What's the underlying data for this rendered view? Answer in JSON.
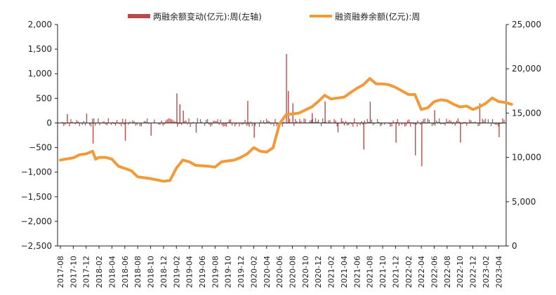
{
  "chart_data": {
    "type": "bar+line",
    "legend": {
      "placement": "top",
      "bar_label": "两融余额变动(亿元):周(左轴)",
      "line_label": "融资融券余额(亿元):周"
    },
    "colors": {
      "bar": "#b84a4a",
      "line": "#f29a3a"
    },
    "left_axis": {
      "ylim": [
        -2500,
        2000
      ],
      "ticks": [
        "2,000",
        "1,500",
        "1,000",
        "500",
        "0",
        "−500",
        "−1,000",
        "−1,500",
        "−2,000",
        "−2,500"
      ]
    },
    "right_axis": {
      "ylim": [
        0,
        25000
      ],
      "ticks": [
        "25,000",
        "20,000",
        "15,000",
        "10,000",
        "5,000",
        "0"
      ]
    },
    "x_ticks": [
      "2017-08",
      "2017-10",
      "2017-12",
      "2018-02",
      "2018-04",
      "2018-06",
      "2018-08",
      "2018-10",
      "2018-12",
      "2019-02",
      "2019-04",
      "2019-06",
      "2019-08",
      "2019-10",
      "2019-12",
      "2020-02",
      "2020-04",
      "2020-06",
      "2020-08",
      "2020-10",
      "2020-12",
      "2021-02",
      "2021-04",
      "2021-06",
      "2021-08",
      "2021-10",
      "2021-12",
      "2022-02",
      "2022-04",
      "2022-06",
      "2022-08",
      "2022-10",
      "2022-12",
      "2023-02",
      "2023-04"
    ],
    "margin_balance": {
      "name": "融资融券余额(亿元):周",
      "points": [
        {
          "x": "2017-08",
          "y": 9700
        },
        {
          "x": "2017-10",
          "y": 9950
        },
        {
          "x": "2017-11",
          "y": 10300
        },
        {
          "x": "2017-12",
          "y": 10400
        },
        {
          "x": "2018-01",
          "y": 10700
        },
        {
          "x": "2018-01-15",
          "y": 9800
        },
        {
          "x": "2018-02",
          "y": 10000
        },
        {
          "x": "2018-03",
          "y": 10000
        },
        {
          "x": "2018-04",
          "y": 9800
        },
        {
          "x": "2018-05",
          "y": 9000
        },
        {
          "x": "2018-07",
          "y": 8500
        },
        {
          "x": "2018-08",
          "y": 7800
        },
        {
          "x": "2018-10",
          "y": 7600
        },
        {
          "x": "2018-12",
          "y": 7300
        },
        {
          "x": "2019-01",
          "y": 7400
        },
        {
          "x": "2019-02",
          "y": 8800
        },
        {
          "x": "2019-03",
          "y": 9700
        },
        {
          "x": "2019-04",
          "y": 9500
        },
        {
          "x": "2019-05",
          "y": 9100
        },
        {
          "x": "2019-07",
          "y": 9000
        },
        {
          "x": "2019-08",
          "y": 8900
        },
        {
          "x": "2019-09",
          "y": 9500
        },
        {
          "x": "2019-11",
          "y": 9700
        },
        {
          "x": "2019-12",
          "y": 10000
        },
        {
          "x": "2020-01",
          "y": 10400
        },
        {
          "x": "2020-02",
          "y": 11100
        },
        {
          "x": "2020-03",
          "y": 10700
        },
        {
          "x": "2020-04",
          "y": 10600
        },
        {
          "x": "2020-05",
          "y": 11100
        },
        {
          "x": "2020-06",
          "y": 13800
        },
        {
          "x": "2020-07",
          "y": 14800
        },
        {
          "x": "2020-09",
          "y": 15000
        },
        {
          "x": "2020-11",
          "y": 15700
        },
        {
          "x": "2020-12",
          "y": 16300
        },
        {
          "x": "2021-01",
          "y": 17000
        },
        {
          "x": "2021-02",
          "y": 16600
        },
        {
          "x": "2021-04",
          "y": 16800
        },
        {
          "x": "2021-05",
          "y": 17300
        },
        {
          "x": "2021-06",
          "y": 17800
        },
        {
          "x": "2021-07",
          "y": 18200
        },
        {
          "x": "2021-08",
          "y": 18900
        },
        {
          "x": "2021-09",
          "y": 18300
        },
        {
          "x": "2021-10",
          "y": 18300
        },
        {
          "x": "2021-11",
          "y": 18200
        },
        {
          "x": "2021-12",
          "y": 17900
        },
        {
          "x": "2022-01",
          "y": 17500
        },
        {
          "x": "2022-02",
          "y": 17100
        },
        {
          "x": "2022-03",
          "y": 17100
        },
        {
          "x": "2022-04",
          "y": 15400
        },
        {
          "x": "2022-05",
          "y": 15600
        },
        {
          "x": "2022-06",
          "y": 16300
        },
        {
          "x": "2022-07",
          "y": 16500
        },
        {
          "x": "2022-08",
          "y": 16400
        },
        {
          "x": "2022-09",
          "y": 16000
        },
        {
          "x": "2022-10",
          "y": 15700
        },
        {
          "x": "2022-11",
          "y": 15800
        },
        {
          "x": "2022-12",
          "y": 15400
        },
        {
          "x": "2023-01",
          "y": 15700
        },
        {
          "x": "2023-02",
          "y": 16100
        },
        {
          "x": "2023-03",
          "y": 16700
        },
        {
          "x": "2023-04",
          "y": 16300
        },
        {
          "x": "2023-05",
          "y": 16200
        },
        {
          "x": "2023-06",
          "y": 16000
        }
      ]
    },
    "weekly_change": {
      "name": "两融余额变动(亿元):周(左轴)",
      "spikes": [
        {
          "x": "2017-09",
          "y": 180
        },
        {
          "x": "2017-12",
          "y": 190
        },
        {
          "x": "2018-01",
          "y": -420
        },
        {
          "x": "2018-06",
          "y": -360
        },
        {
          "x": "2018-10",
          "y": -260
        },
        {
          "x": "2019-02",
          "y": 600
        },
        {
          "x": "2019-02-15",
          "y": 380
        },
        {
          "x": "2019-03",
          "y": 250
        },
        {
          "x": "2019-05",
          "y": -200
        },
        {
          "x": "2020-01",
          "y": 450
        },
        {
          "x": "2020-02",
          "y": -300
        },
        {
          "x": "2020-07",
          "y": 1400
        },
        {
          "x": "2020-07-10",
          "y": 650
        },
        {
          "x": "2020-08",
          "y": 400
        },
        {
          "x": "2020-11",
          "y": 200
        },
        {
          "x": "2021-01",
          "y": 440
        },
        {
          "x": "2021-03",
          "y": -190
        },
        {
          "x": "2021-07",
          "y": -540
        },
        {
          "x": "2021-08",
          "y": 430
        },
        {
          "x": "2021-12",
          "y": -400
        },
        {
          "x": "2022-03",
          "y": -660
        },
        {
          "x": "2022-04",
          "y": -880
        },
        {
          "x": "2022-06",
          "y": 260
        },
        {
          "x": "2022-10",
          "y": -400
        },
        {
          "x": "2023-01",
          "y": 400
        },
        {
          "x": "2023-04",
          "y": -290
        }
      ]
    }
  }
}
